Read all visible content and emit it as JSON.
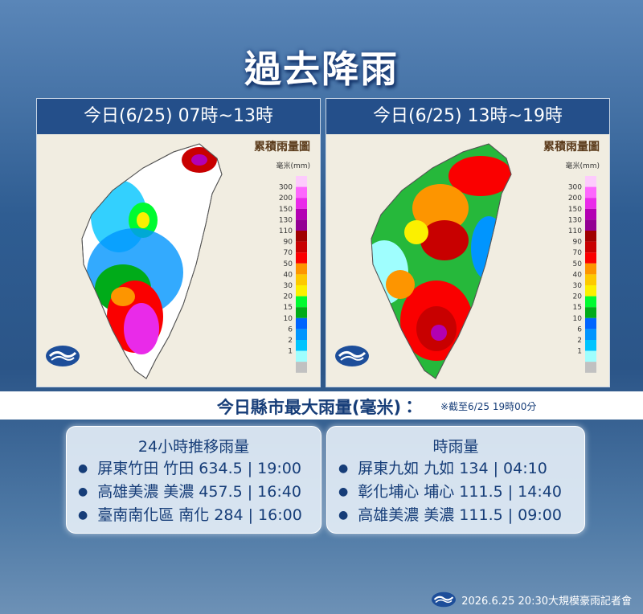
{
  "title": "過去降雨",
  "panels": [
    {
      "heading": "今日(6/25) 07時~13時",
      "map_title": "累積雨量圖",
      "unit": "毫米(mm)"
    },
    {
      "heading": "今日(6/25) 13時~19時",
      "map_title": "累積雨量圖",
      "unit": "毫米(mm)"
    }
  ],
  "legend": {
    "levels": [
      "300",
      "200",
      "150",
      "130",
      "110",
      "90",
      "70",
      "50",
      "40",
      "30",
      "20",
      "15",
      "10",
      "6",
      "2",
      "1"
    ],
    "colors": [
      "#fdcbfd",
      "#fd67fd",
      "#e92ae9",
      "#b300b3",
      "#930093",
      "#a00000",
      "#c80000",
      "#fa0000",
      "#fd9500",
      "#fdc900",
      "#fbf000",
      "#00fb30",
      "#00ab19",
      "#0065fe",
      "#0095fe",
      "#00c4fe",
      "#9ffefe",
      "#c1c1c1"
    ]
  },
  "section": {
    "title": "今日縣市最大雨量(毫米)：",
    "note": "※截至6/25 19時00分"
  },
  "boxes": [
    {
      "heading": "24小時推移雨量",
      "items": [
        "屏東竹田 竹田 634.5 | 19:00",
        "高雄美濃 美濃 457.5 | 16:40",
        "臺南南化區 南化 284 | 16:00"
      ]
    },
    {
      "heading": "時雨量",
      "items": [
        "屏東九如 九如 134 | 04:10",
        "彰化埔心 埔心 111.5 | 14:40",
        "高雄美濃 美濃 111.5 | 09:00"
      ]
    }
  ],
  "footer": "2026.6.25 20:30大規模豪雨記者會"
}
